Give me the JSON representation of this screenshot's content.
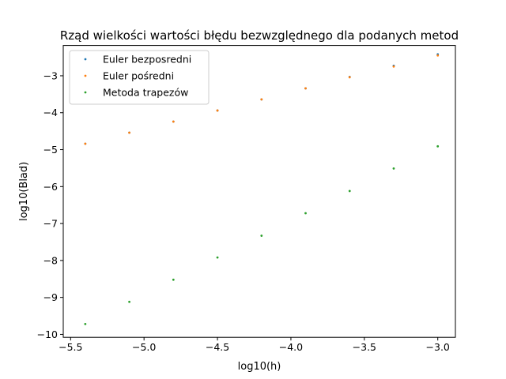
{
  "chart_data": {
    "type": "scatter",
    "title": "Rząd wielkości wartości błędu bezwzględnego dla podanych metod",
    "xlabel": "log10(h)",
    "ylabel": "log10(Blad)",
    "xlim": [
      -5.55,
      -2.88
    ],
    "ylim": [
      -10.08,
      -2.18
    ],
    "xticks": [
      -5.5,
      -5.0,
      -4.5,
      -4.0,
      -3.5,
      -3.0
    ],
    "xtick_labels": [
      "−5.5",
      "−5.0",
      "−4.5",
      "−4.0",
      "−3.5",
      "−3.0"
    ],
    "yticks": [
      -10,
      -9,
      -8,
      -7,
      -6,
      -5,
      -4,
      -3
    ],
    "ytick_labels": [
      "−10",
      "−9",
      "−8",
      "−7",
      "−6",
      "−5",
      "−4",
      "−3"
    ],
    "grid": false,
    "legend_position": "top-left",
    "x": [
      -5.4,
      -5.1,
      -4.8,
      -4.5,
      -4.2,
      -3.9,
      -3.6,
      -3.3,
      -3.0
    ],
    "series": [
      {
        "name": "Euler bezposredni",
        "color": "#1f77b4",
        "values": [
          -4.84,
          -4.54,
          -4.24,
          -3.94,
          -3.64,
          -3.34,
          -3.03,
          -2.73,
          -2.42
        ]
      },
      {
        "name": "Euler pośredni",
        "color": "#ff7f0e",
        "values": [
          -4.84,
          -4.54,
          -4.24,
          -3.94,
          -3.64,
          -3.34,
          -3.04,
          -2.75,
          -2.45
        ]
      },
      {
        "name": "Metoda trapezów",
        "color": "#2ca02c",
        "values": [
          -9.72,
          -9.12,
          -8.52,
          -7.92,
          -7.33,
          -6.72,
          -6.12,
          -5.51,
          -4.91
        ]
      }
    ]
  }
}
